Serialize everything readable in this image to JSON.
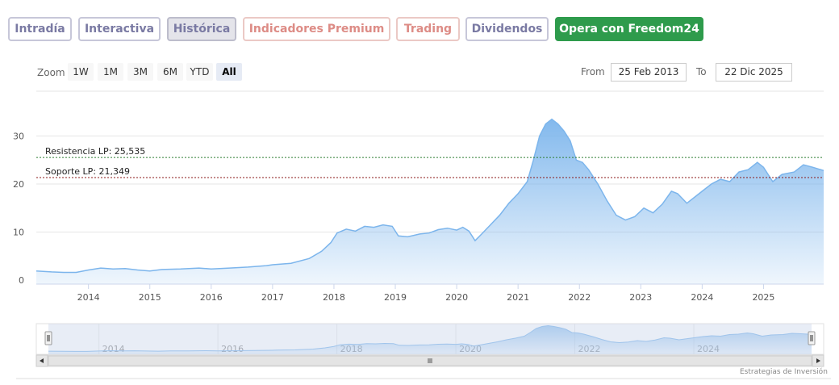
{
  "tabs": [
    {
      "label": "Intradía",
      "style": "normal"
    },
    {
      "label": "Interactiva",
      "style": "normal"
    },
    {
      "label": "Histórica",
      "style": "active"
    },
    {
      "label": "Indicadores Premium",
      "style": "red"
    },
    {
      "label": "Trading",
      "style": "red"
    },
    {
      "label": "Dividendos",
      "style": "normal"
    },
    {
      "label": "Opera con Freedom24",
      "style": "green"
    }
  ],
  "range_selector": {
    "zoom_label": "Zoom",
    "buttons": [
      "1W",
      "1M",
      "3M",
      "6M",
      "YTD",
      "All"
    ],
    "selected": "All",
    "from_label": "From",
    "from_value": "25 Feb 2013",
    "to_label": "To",
    "to_value": "22 Dic 2025"
  },
  "credits": "Estrategias de Inversión",
  "colors": {
    "series_line": "#7cb5ec",
    "area_top": "#7cb5ec",
    "resistance_line": "#2e7d32",
    "support_line": "#8b1a1a",
    "navigator_mask": "#ccd6eb"
  },
  "chart_data": {
    "type": "area",
    "title": "",
    "xlabel": "",
    "ylabel": "",
    "ylim": [
      0,
      35
    ],
    "y_ticks": [
      0,
      10,
      20,
      30
    ],
    "x_ticks": [
      "2014",
      "2015",
      "2016",
      "2017",
      "2018",
      "2019",
      "2020",
      "2021",
      "2022",
      "2023",
      "2024",
      "2025"
    ],
    "xlim": [
      2013.15,
      2025.98
    ],
    "grid": true,
    "legend": "none",
    "x": [
      2013.15,
      2013.4,
      2013.6,
      2013.8,
      2014.0,
      2014.2,
      2014.4,
      2014.6,
      2014.8,
      2015.0,
      2015.2,
      2015.5,
      2015.8,
      2016.0,
      2016.3,
      2016.6,
      2016.9,
      2017.0,
      2017.3,
      2017.6,
      2017.8,
      2017.95,
      2018.05,
      2018.2,
      2018.35,
      2018.5,
      2018.65,
      2018.8,
      2018.95,
      2019.05,
      2019.2,
      2019.4,
      2019.55,
      2019.7,
      2019.85,
      2020.0,
      2020.1,
      2020.2,
      2020.3,
      2020.4,
      2020.55,
      2020.7,
      2020.85,
      2021.0,
      2021.15,
      2021.25,
      2021.35,
      2021.45,
      2021.55,
      2021.65,
      2021.75,
      2021.85,
      2021.95,
      2022.05,
      2022.15,
      2022.3,
      2022.45,
      2022.6,
      2022.75,
      2022.9,
      2023.05,
      2023.2,
      2023.35,
      2023.5,
      2023.6,
      2023.75,
      2023.9,
      2024.0,
      2024.15,
      2024.3,
      2024.45,
      2024.6,
      2024.75,
      2024.9,
      2025.0,
      2025.15,
      2025.3,
      2025.5,
      2025.65,
      2025.8,
      2025.98
    ],
    "y": [
      1.9,
      1.7,
      1.6,
      1.6,
      2.1,
      2.5,
      2.3,
      2.4,
      2.1,
      1.9,
      2.2,
      2.3,
      2.5,
      2.3,
      2.5,
      2.7,
      3.0,
      3.2,
      3.5,
      4.5,
      6.0,
      7.8,
      9.8,
      10.6,
      10.2,
      11.2,
      11.0,
      11.5,
      11.2,
      9.2,
      9.0,
      9.6,
      9.8,
      10.5,
      10.8,
      10.4,
      11.0,
      10.2,
      8.2,
      9.5,
      11.5,
      13.5,
      16.0,
      18.0,
      20.5,
      25.0,
      30.0,
      32.5,
      33.5,
      32.5,
      31.0,
      29.0,
      25.0,
      24.5,
      23.0,
      20.0,
      16.5,
      13.5,
      12.5,
      13.2,
      15.0,
      14.0,
      15.8,
      18.5,
      18.0,
      16.0,
      17.5,
      18.5,
      20.0,
      21.0,
      20.5,
      22.5,
      23.0,
      24.5,
      23.5,
      20.5,
      22.0,
      22.5,
      24.0,
      23.5,
      22.8
    ],
    "annotations": [
      {
        "label": "Resistencia LP: 25,535",
        "y": 25.535
      },
      {
        "label": "Soporte LP: 21,349",
        "y": 21.349
      }
    ],
    "navigator_x_ticks": [
      "2014",
      "2016",
      "2018",
      "2020",
      "2022",
      "2024"
    ]
  }
}
